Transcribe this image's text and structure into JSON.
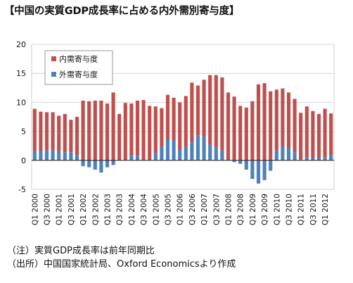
{
  "chart_data": {
    "type": "bar",
    "title": "【中国の実質GDP成長率に占める内外需別寄与度】",
    "xlabel": "",
    "ylabel": "",
    "ylim": [
      -5,
      20
    ],
    "yticks": [
      "-5",
      "0",
      "5",
      "10",
      "15",
      "20"
    ],
    "grid": true,
    "legend_placement": "top-left",
    "stacked": true,
    "categories": [
      "Q1 2000",
      "Q2 2000",
      "Q3 2000",
      "Q4 2000",
      "Q1 2001",
      "Q2 2001",
      "Q3 2001",
      "Q4 2001",
      "Q1 2002",
      "Q2 2002",
      "Q3 2002",
      "Q4 2002",
      "Q1 2003",
      "Q2 2003",
      "Q3 2003",
      "Q4 2003",
      "Q1 2004",
      "Q2 2004",
      "Q3 2004",
      "Q4 2004",
      "Q1 2005",
      "Q2 2005",
      "Q3 2005",
      "Q4 2005",
      "Q1 2006",
      "Q2 2006",
      "Q3 2006",
      "Q4 2006",
      "Q1 2007",
      "Q2 2007",
      "Q3 2007",
      "Q4 2007",
      "Q1 2008",
      "Q2 2008",
      "Q3 2008",
      "Q4 2008",
      "Q1 2009",
      "Q2 2009",
      "Q3 2009",
      "Q4 2009",
      "Q1 2010",
      "Q2 2010",
      "Q3 2010",
      "Q4 2010",
      "Q1 2011",
      "Q2 2011",
      "Q3 2011",
      "Q4 2011",
      "Q1 2012",
      "Q2 2012"
    ],
    "x_tick_labels": [
      "Q1 2000",
      "Q3 2000",
      "Q1 2001",
      "Q3 2001",
      "Q1 2002",
      "Q3 2002",
      "Q1 2003",
      "Q3 2003",
      "Q1 2004",
      "Q3 2004",
      "Q1 2005",
      "Q3 2005",
      "Q1 2006",
      "Q3 2006",
      "Q1 2007",
      "Q3 2007",
      "Q1 2008",
      "Q3 2008",
      "Q1 2009",
      "Q3 2009",
      "Q1 2010",
      "Q3 2010",
      "Q1 2011",
      "Q3 2011",
      "Q1 2012"
    ],
    "series": [
      {
        "name": "内需寄与度",
        "color": "#c0504d",
        "values": [
          7.3,
          6.8,
          6.6,
          6.6,
          6.1,
          6.6,
          5.6,
          6.6,
          10.3,
          10.2,
          10.3,
          10.3,
          9.8,
          11.7,
          8.0,
          9.8,
          9.0,
          9.5,
          10.4,
          9.4,
          8.0,
          6.7,
          7.8,
          7.3,
          8.2,
          8.8,
          10.3,
          8.6,
          9.8,
          12.0,
          12.4,
          12.6,
          11.6,
          11.0,
          9.4,
          9.1,
          10.2,
          13.1,
          13.3,
          11.9,
          10.5,
          10.0,
          9.6,
          9.2,
          8.0,
          8.8,
          8.1,
          7.6,
          8.4,
          7.2
        ]
      },
      {
        "name": "外需寄与度",
        "color": "#4f81bd",
        "values": [
          1.6,
          1.6,
          1.7,
          1.7,
          1.6,
          1.4,
          1.4,
          0.9,
          -1.0,
          -1.2,
          -1.6,
          -2.1,
          -1.2,
          -0.8,
          0.0,
          0.1,
          0.8,
          0.8,
          0.0,
          0.0,
          1.3,
          2.3,
          3.5,
          3.5,
          1.8,
          2.3,
          3.1,
          4.3,
          4.1,
          2.7,
          2.3,
          1.7,
          0.1,
          -0.3,
          -0.6,
          -1.6,
          -3.2,
          -4.0,
          -3.4,
          -1.8,
          1.7,
          2.4,
          2.1,
          1.4,
          0.2,
          0.5,
          0.4,
          0.4,
          0.5,
          0.9
        ]
      }
    ]
  },
  "notes": [
    "（注）実質GDP成長率は前年同期比",
    "（出所）中国国家統計局、Oxford Economicsより作成"
  ]
}
